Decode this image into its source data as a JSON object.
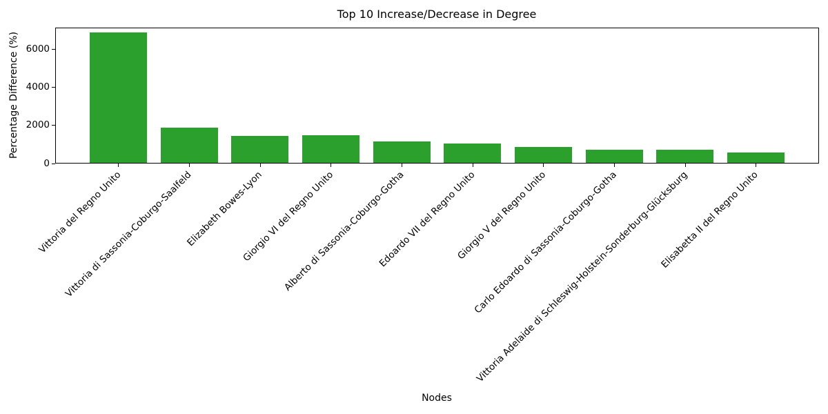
{
  "chart_data": {
    "type": "bar",
    "title": "Top 10 Increase/Decrease in Degree",
    "xlabel": "Nodes",
    "ylabel": "Percentage Difference (%)",
    "categories": [
      "Vittoria del Regno Unito",
      "Vittoria di Sassonia-Coburgo-Saalfeld",
      "Elizabeth Bowes-Lyon",
      "Giorgio VI del Regno Unito",
      "Alberto di Sassonia-Coburgo-Gotha",
      "Edoardo VII del Regno Unito",
      "Giorgio V del Regno Unito",
      "Carlo Edoardo di Sassonia-Coburgo-Gotha",
      "Vittoria Adelaide di Schleswig-Holstein-Sonderburg-Glücksburg",
      "Elisabetta II del Regno Unito"
    ],
    "values": [
      6880,
      1870,
      1445,
      1465,
      1150,
      1030,
      860,
      700,
      700,
      555
    ],
    "yticks": [
      0,
      2000,
      4000,
      6000
    ],
    "ylim": [
      0,
      7140
    ],
    "grid": false,
    "legend_position": "none",
    "x_tick_rotation_deg": 45,
    "bar_width_ratio": 0.8,
    "bar_color": "#2ca02c",
    "axis_color": "#000000",
    "text_color": "#000000",
    "background_color": "#ffffff"
  }
}
